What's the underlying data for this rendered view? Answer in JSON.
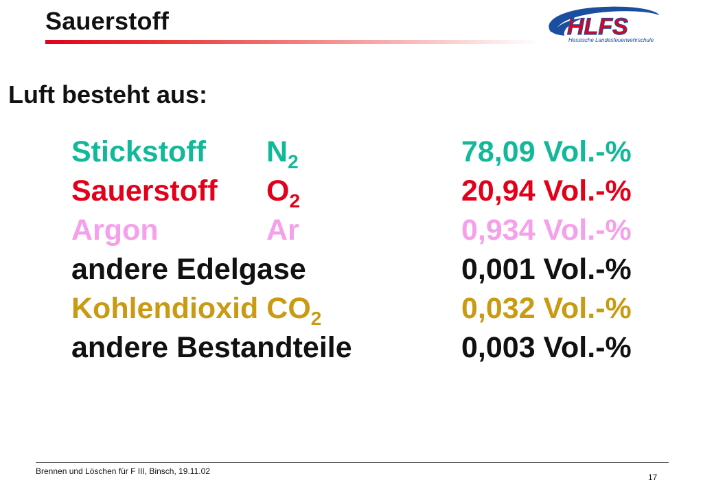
{
  "slide": {
    "title": "Sauerstoff",
    "intro": "Luft besteht aus:"
  },
  "logo": {
    "text": "HLFS",
    "subtext": "Hessische Landesfeuerwehrschule",
    "color_primary": "#e2001a",
    "color_secondary": "#1a4fa0"
  },
  "components": [
    {
      "name": "Stickstoff",
      "symbol": "N",
      "symbol_sub": "2",
      "value": "78,09 Vol.-%",
      "color": "#12b89a"
    },
    {
      "name": "Sauerstoff",
      "symbol": "O",
      "symbol_sub": "2",
      "value": "20,94 Vol.-%",
      "color": "#e2001a"
    },
    {
      "name": "Argon",
      "symbol": "Ar",
      "symbol_sub": "",
      "value": "0,934 Vol.-%",
      "color": "#f5a0ea"
    },
    {
      "name": "andere Edelgase",
      "symbol": "",
      "symbol_sub": "",
      "value": "0,001 Vol.-%",
      "color": "#111111"
    },
    {
      "name": "Kohlendioxid CO",
      "symbol": "",
      "symbol_sub": "2",
      "value": "0,032 Vol.-%",
      "color": "#c99a12"
    },
    {
      "name": "andere Bestandteile",
      "symbol": "",
      "symbol_sub": "",
      "value": "0,003 Vol.-%",
      "color": "#111111"
    }
  ],
  "footer": {
    "text": "Brennen und Löschen für F III, Binsch,  19.11.02",
    "page_number": "17"
  }
}
